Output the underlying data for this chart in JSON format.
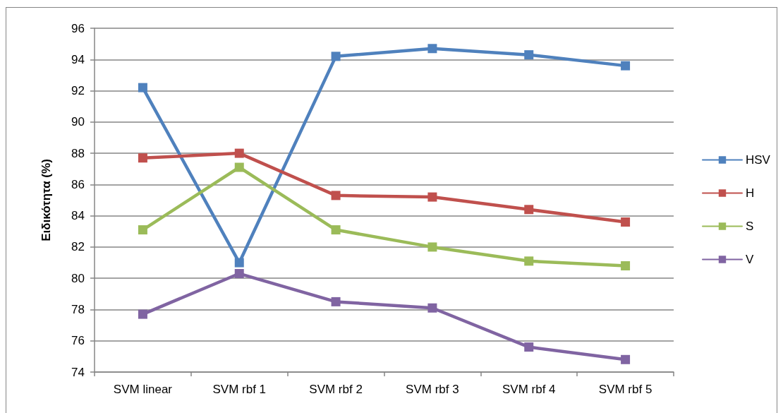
{
  "chart_data": {
    "type": "line",
    "ylabel": "Ειδικότητα (%)",
    "categories": [
      "SVM linear",
      "SVM rbf 1",
      "SVM rbf 2",
      "SVM rbf 3",
      "SVM rbf 4",
      "SVM rbf 5"
    ],
    "series": [
      {
        "name": "HSV",
        "color": "#4f81bd",
        "values": [
          92.2,
          81.0,
          94.2,
          94.7,
          94.3,
          93.6
        ]
      },
      {
        "name": "H",
        "color": "#c0504d",
        "values": [
          87.7,
          88.0,
          85.3,
          85.2,
          84.4,
          83.6
        ]
      },
      {
        "name": "S",
        "color": "#9bbb59",
        "values": [
          83.1,
          87.1,
          83.1,
          82.0,
          81.1,
          80.8
        ]
      },
      {
        "name": "V",
        "color": "#8064a2",
        "values": [
          77.7,
          80.3,
          78.5,
          78.1,
          75.6,
          74.8
        ]
      }
    ],
    "ylim": [
      74,
      96
    ],
    "yticks": [
      74,
      76,
      78,
      80,
      82,
      84,
      86,
      88,
      90,
      92,
      94,
      96
    ],
    "grid": "y",
    "legend": "right",
    "marker": "square",
    "line_style": "solid"
  }
}
